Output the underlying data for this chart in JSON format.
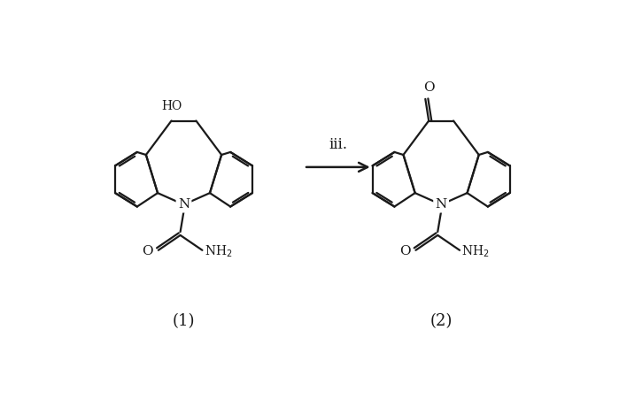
{
  "background_color": "#ffffff",
  "fig_width": 6.99,
  "fig_height": 4.51,
  "dpi": 100,
  "line_color": "#1a1a1a",
  "line_width": 1.6,
  "arrow_label": "iii.",
  "compound1_label": "(1)",
  "compound2_label": "(2)"
}
